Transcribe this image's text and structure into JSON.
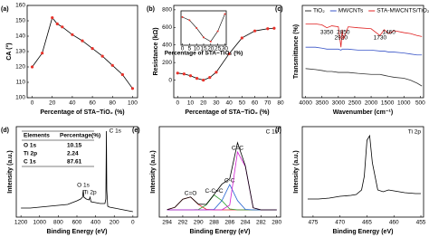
{
  "chart_data": [
    {
      "type": "line",
      "panel_label": "(a)",
      "ylabel": "CA (°)",
      "xlabel": "Percentage of STA−TiO₂ (%)",
      "x": [
        0,
        10,
        20,
        25,
        30,
        40,
        50,
        60,
        70,
        80,
        90,
        100
      ],
      "values": [
        120,
        129,
        152,
        148,
        146,
        141,
        137,
        132,
        127,
        121,
        115,
        106
      ],
      "color": "#000000",
      "marker_color": "#e8322a",
      "xlim": [
        -5,
        105
      ],
      "xticks": [
        0,
        20,
        40,
        60,
        80,
        100
      ],
      "ylim": [
        100,
        160
      ],
      "yticks": [
        100,
        110,
        120,
        130,
        140,
        150,
        160
      ]
    },
    {
      "type": "line",
      "panel_label": "(b)",
      "ylabel": "Resistance (kΩ)",
      "xlabel": "Percentage of STA−TiO₂ (%)",
      "x": [
        0,
        5,
        10,
        15,
        20,
        25,
        30,
        40,
        50,
        60,
        70,
        75
      ],
      "values": [
        80,
        70,
        50,
        20,
        0,
        30,
        90,
        300,
        480,
        560,
        585,
        590
      ],
      "color": "#000000",
      "marker_color": "#e8322a",
      "xlim": [
        -3,
        80
      ],
      "xticks": [
        0,
        10,
        20,
        30,
        40,
        50,
        60,
        70,
        80
      ],
      "ylim": [
        -200,
        850
      ],
      "yticks": [
        0,
        200,
        400,
        600,
        800
      ],
      "inset": {
        "xlabel": "Percentage of STA−TiO₂ (%)",
        "x": [
          0,
          5,
          10,
          15,
          20,
          25,
          30
        ],
        "values": [
          80,
          70,
          45,
          15,
          2,
          35,
          90
        ],
        "color": "#000000",
        "marker_color": "#e8322a",
        "xlim": [
          -1,
          31
        ],
        "xticks": [
          0,
          5,
          10,
          15,
          20,
          25,
          30
        ],
        "ylim": [
          -10,
          100
        ]
      }
    },
    {
      "type": "line",
      "panel_label": "(c)",
      "ylabel": "Transmittance (%)",
      "xlabel": "Wavenumber (cm⁻¹)",
      "x": [
        4000,
        3700,
        3500,
        3350,
        3200,
        3000,
        2920,
        2880,
        2850,
        2700,
        2400,
        2000,
        1730,
        1600,
        1460,
        1300,
        1000,
        800,
        600,
        450
      ],
      "series": [
        {
          "name": "TiO₂",
          "color": "#333333",
          "values": [
            30,
            29,
            28,
            27,
            27,
            26,
            26,
            26,
            26,
            26,
            25,
            24,
            24,
            23,
            22,
            21,
            20,
            18,
            15,
            12
          ]
        },
        {
          "name": "MWCNTs",
          "color": "#3a56c8",
          "values": [
            52,
            52,
            51,
            50,
            50,
            50,
            49,
            50,
            50,
            50,
            49,
            49,
            48,
            48,
            47,
            47,
            46,
            45,
            44,
            44
          ]
        },
        {
          "name": "STA-MWCNTS/TiO₂",
          "color": "#e02020",
          "values": [
            76,
            76,
            75,
            72,
            74,
            73,
            52,
            70,
            60,
            73,
            72,
            71,
            64,
            70,
            66,
            69,
            67,
            66,
            64,
            63
          ]
        }
      ],
      "peak_labels": [
        3350,
        2920,
        2850,
        1730,
        1460
      ],
      "xlim": [
        4100,
        400
      ],
      "xticks": [
        4000,
        3500,
        3000,
        2500,
        2000,
        1500,
        1000,
        500
      ],
      "ylim": [
        0,
        95
      ],
      "legend": "top"
    },
    {
      "type": "line",
      "panel_label": "(d)",
      "ylabel": "Intensity (a.u.)",
      "xlabel": "Binding Energy (eV)",
      "x": [
        1200,
        1100,
        1000,
        900,
        800,
        700,
        650,
        600,
        560,
        540,
        532,
        525,
        500,
        470,
        459,
        450,
        400,
        350,
        300,
        290,
        284,
        280,
        270,
        250,
        200,
        100,
        0
      ],
      "values": [
        10,
        10,
        11,
        12,
        13,
        14,
        16,
        18,
        20,
        22,
        30,
        22,
        20,
        19,
        22,
        17,
        16,
        15,
        15,
        20,
        95,
        30,
        12,
        11,
        10,
        8,
        6
      ],
      "color": "#000000",
      "peak_labels": [
        {
          "text": "C 1s",
          "x": 284
        },
        {
          "text": "O 1s",
          "x": 532
        },
        {
          "text": "Ti 2p",
          "x": 459
        }
      ],
      "table": {
        "header": [
          "Elements",
          "Percentage(%)"
        ],
        "rows": [
          [
            "O 1s",
            10.15
          ],
          [
            "Ti 2p",
            2.24
          ],
          [
            "C 1s",
            87.61
          ]
        ]
      },
      "xlim": [
        1250,
        -50
      ],
      "xticks": [
        1200,
        1000,
        800,
        600,
        400,
        200,
        0
      ],
      "ylim": [
        0,
        100
      ]
    },
    {
      "type": "line",
      "panel_label": "(e)",
      "ylabel": "Intensity (a.u.)",
      "xlabel": "Binding Energy (eV)",
      "corner_label": "C 1s",
      "x": [
        294,
        293,
        292,
        291,
        290,
        289,
        288,
        287,
        286,
        285,
        284,
        283,
        282,
        281,
        280
      ],
      "series": [
        {
          "name": "C=O",
          "color": "#e02020",
          "values": [
            8.2,
            10.8,
            19.8,
            22.2,
            13.9,
            8.6,
            8,
            8,
            8,
            8,
            8,
            8,
            8,
            8,
            8
          ]
        },
        {
          "name": "C-C=C",
          "color": "#2ca02c",
          "values": [
            8,
            8,
            8,
            8,
            8.4,
            13.4,
            24.5,
            18.2,
            9,
            8,
            8,
            8,
            8,
            8,
            8
          ]
        },
        {
          "name": "C-C",
          "color": "#2060d0",
          "values": [
            8,
            8,
            8,
            8,
            8,
            8,
            8.5,
            18.2,
            36,
            18.2,
            8.5,
            8,
            8,
            8,
            8
          ]
        },
        {
          "name": "C=C",
          "color": "#d020d0",
          "values": [
            8,
            8,
            8,
            8,
            8,
            8,
            8,
            8,
            13.3,
            72,
            56,
            10.3,
            8,
            8,
            8
          ]
        },
        {
          "color": "#000000",
          "values": [
            8.2,
            10.8,
            19.8,
            22.2,
            14.3,
            14,
            25,
            36.4,
            42.3,
            82.2,
            56.5,
            10.3,
            8,
            8,
            8
          ]
        }
      ],
      "xlim": [
        295,
        279.5
      ],
      "xticks": [
        294,
        292,
        290,
        288,
        286,
        284,
        282,
        280
      ],
      "ylim": [
        0,
        100
      ]
    },
    {
      "type": "line",
      "panel_label": "(f)",
      "ylabel": "Intensity (a.u.)",
      "xlabel": "Binding Energy (eV)",
      "corner_label": "Ti 2p",
      "x": [
        476,
        474,
        472,
        470,
        468,
        467,
        466,
        465.5,
        465,
        464.5,
        464,
        463,
        462,
        461,
        460,
        458,
        456,
        455
      ],
      "values": [
        20,
        20,
        21,
        23,
        24,
        25,
        30,
        45,
        85,
        90,
        60,
        30,
        28,
        30,
        29,
        27,
        26,
        26
      ],
      "color": "#000000",
      "xlim": [
        477,
        454.5
      ],
      "xticks": [
        475,
        470,
        465,
        460,
        455
      ],
      "ylim": [
        0,
        100
      ]
    }
  ]
}
